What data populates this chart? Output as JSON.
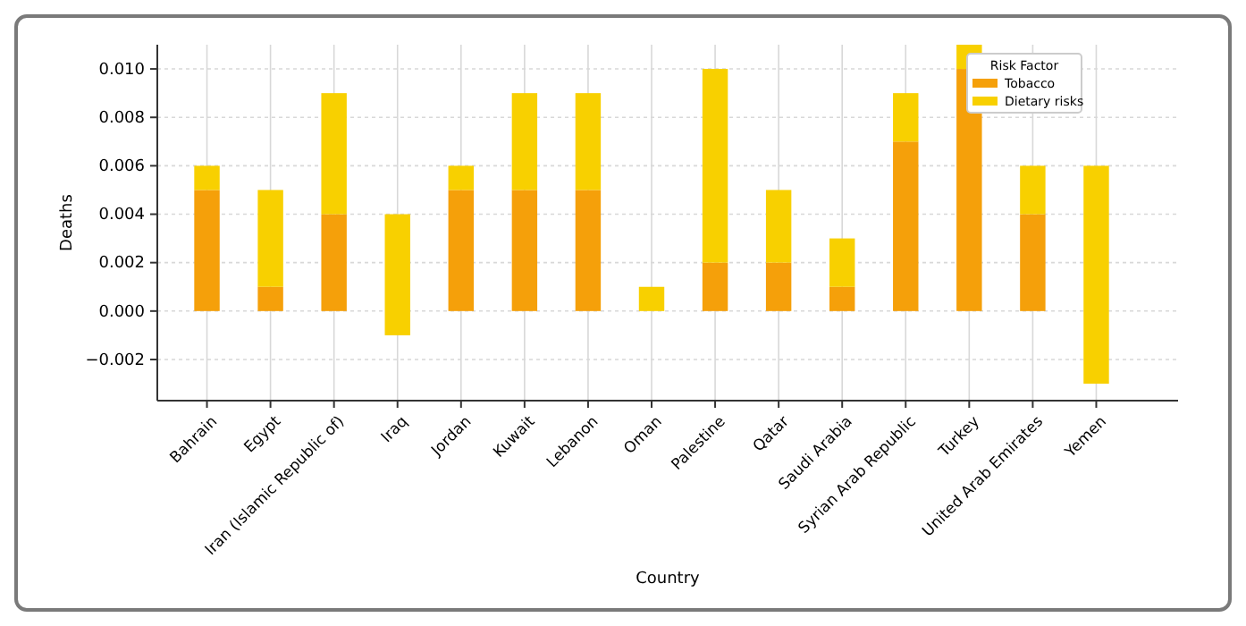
{
  "chart_data": {
    "type": "bar",
    "xlabel": "Country",
    "ylabel": "Deaths",
    "legend_title": "Risk Factor",
    "categories": [
      "Bahrain",
      "Egypt",
      "Iran (Islamic Republic of)",
      "Iraq",
      "Jordan",
      "Kuwait",
      "Lebanon",
      "Oman",
      "Palestine",
      "Qatar",
      "Saudi Arabia",
      "Syrian Arab Republic",
      "Turkey",
      "United Arab Emirates",
      "Yemen"
    ],
    "series": [
      {
        "name": "Tobacco",
        "color": "#f5a00a",
        "values": [
          0.005,
          0.001,
          0.004,
          null,
          0.005,
          0.005,
          0.005,
          0,
          0.002,
          0.002,
          0.001,
          0.007,
          0.01,
          0.004,
          null
        ]
      },
      {
        "name": "Dietary risks",
        "color": "#f8d000",
        "base": [
          0.005,
          0.001,
          0.004,
          -0.001,
          0.005,
          0.005,
          0.005,
          0,
          0.002,
          0.002,
          0.001,
          0.007,
          0.01,
          0.004,
          -0.003
        ],
        "values": [
          0.001,
          0.004,
          0.005,
          0.005,
          0.001,
          0.004,
          0.004,
          0.001,
          0.008,
          0.003,
          0.002,
          0.002,
          0.001,
          0.002,
          0.009
        ]
      }
    ],
    "stacked": true,
    "ylim": [
      -0.0037,
      0.011
    ],
    "yticks": [
      {
        "value": -0.002,
        "label": "−0.002"
      },
      {
        "value": 0,
        "label": "0.000"
      },
      {
        "value": 0.002,
        "label": "0.002"
      },
      {
        "value": 0.004,
        "label": "0.004"
      },
      {
        "value": 0.006,
        "label": "0.006"
      },
      {
        "value": 0.008,
        "label": "0.008"
      },
      {
        "value": 0.01,
        "label": "0.010"
      }
    ],
    "grid": true,
    "legend": "top right"
  }
}
